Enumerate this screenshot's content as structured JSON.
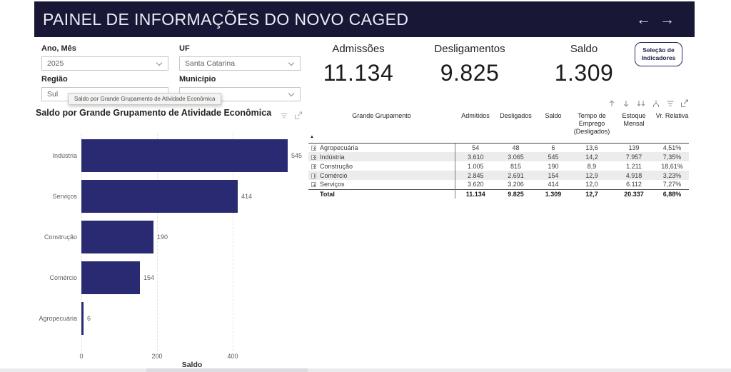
{
  "header": {
    "title": "PAINEL DE INFORMAÇÕES DO NOVO CAGED",
    "back_arrow": "←",
    "forward_arrow": "→"
  },
  "filters": {
    "ano_mes": {
      "label": "Ano, Mês",
      "value": "2025"
    },
    "uf": {
      "label": "UF",
      "value": "Santa Catarina"
    },
    "regiao": {
      "label": "Região",
      "value": "Sul"
    },
    "municipio": {
      "label": "Município",
      "value": ""
    }
  },
  "tooltip": {
    "text": "Saldo por Grande Grupamento de Atividade Econômica"
  },
  "kpis": [
    {
      "label": "Admissões",
      "value": "11.134"
    },
    {
      "label": "Desligamentos",
      "value": "9.825"
    },
    {
      "label": "Saldo",
      "value": "1.309"
    }
  ],
  "selection_button": {
    "label": "Seleção de Indicadores"
  },
  "chart_data": {
    "type": "bar",
    "orientation": "horizontal",
    "title": "Saldo por Grande Grupamento de Atividade Econômica",
    "categories": [
      "Indústria",
      "Serviços",
      "Construção",
      "Comércio",
      "Agropecuária"
    ],
    "values": [
      545,
      414,
      190,
      154,
      6
    ],
    "xlabel": "Saldo",
    "x_ticks": [
      0,
      200,
      400
    ],
    "xlim": [
      0,
      585
    ],
    "grid": true,
    "legend": false,
    "bar_color": "#2A2A72"
  },
  "table": {
    "columns": [
      "Grande Grupamento",
      "Admitidos",
      "Desligados",
      "Saldo",
      "Tempo de Emprego (Desligados)",
      "Estoque Mensal",
      "Vr. Relativa"
    ],
    "rows": [
      [
        "Agropecuária",
        "54",
        "48",
        "6",
        "13,6",
        "139",
        "4,51%"
      ],
      [
        "Indústria",
        "3.610",
        "3.065",
        "545",
        "14,2",
        "7.957",
        "7,35%"
      ],
      [
        "Construção",
        "1.005",
        "815",
        "190",
        "8,9",
        "1.211",
        "18,61%"
      ],
      [
        "Comércio",
        "2.845",
        "2.691",
        "154",
        "12,9",
        "4.918",
        "3,23%"
      ],
      [
        "Serviços",
        "3.620",
        "3.206",
        "414",
        "12,0",
        "6.112",
        "7,27%"
      ]
    ],
    "total_row": [
      "Total",
      "11.134",
      "9.825",
      "1.309",
      "12,7",
      "20.337",
      "6,88%"
    ]
  },
  "colors": {
    "header_bg": "#181836",
    "bar": "#2A2A72",
    "accent_navy": "#22224E",
    "row_stripe": "#ECECEC"
  }
}
